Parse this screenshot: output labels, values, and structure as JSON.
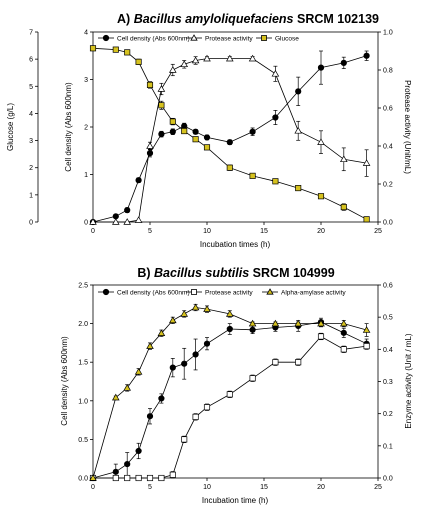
{
  "chart_data": [
    {
      "type": "line",
      "panel_letter": "A)",
      "title_italic": "Bacillus amyloliquefaciens",
      "title_rest": "SRCM 102139",
      "xlabel": "Incubation times (h)",
      "ylabel_left_outer": "Glucose (g/L)",
      "ylabel_left": "Cell density (Abs 600nm)",
      "ylabel_right": "Protease activity (Unit/mL)",
      "xlim": [
        0,
        25
      ],
      "xticks": [
        0,
        5,
        10,
        15,
        20,
        25
      ],
      "ylim_glucose": [
        0,
        7
      ],
      "yticks_glucose": [
        0,
        1,
        2,
        3,
        4,
        5,
        6,
        7
      ],
      "ylim_cell": [
        0,
        4
      ],
      "yticks_cell": [
        0,
        1,
        2,
        3,
        4
      ],
      "ylim_right": [
        0,
        1.0
      ],
      "yticks_right": [
        "0.0",
        "0.2",
        "0.4",
        "0.6",
        "0.8",
        "1.0"
      ],
      "legend_position": "top",
      "series": [
        {
          "name": "Cell density (Abs 600nm)",
          "axis": "cell",
          "marker": "circle-filled",
          "color": "#000000",
          "x": [
            0,
            2,
            3,
            4,
            5,
            6,
            7,
            8,
            9,
            10,
            12,
            14,
            16,
            18,
            20,
            22,
            24
          ],
          "y": [
            0.0,
            0.12,
            0.25,
            0.88,
            1.45,
            1.85,
            1.9,
            2.02,
            1.9,
            1.78,
            1.68,
            1.9,
            2.2,
            2.75,
            3.25,
            3.35,
            3.5
          ],
          "err": [
            0,
            0.03,
            0.05,
            0.05,
            0.08,
            0.06,
            0.06,
            0.06,
            0.05,
            0.05,
            0.05,
            0.08,
            0.15,
            0.3,
            0.35,
            0.12,
            0.1
          ]
        },
        {
          "name": "Protease activity",
          "axis": "right",
          "marker": "triangle-open",
          "color": "#000000",
          "x": [
            0,
            2,
            3,
            4,
            5,
            6,
            7,
            8,
            9,
            10,
            12,
            14,
            16,
            18,
            20,
            22,
            24
          ],
          "y": [
            0.0,
            0.0,
            0.0,
            0.01,
            0.4,
            0.7,
            0.8,
            0.83,
            0.85,
            0.86,
            0.86,
            0.86,
            0.78,
            0.48,
            0.42,
            0.33,
            0.31
          ],
          "err": [
            0,
            0,
            0,
            0,
            0.02,
            0.03,
            0.03,
            0.02,
            0.02,
            0.01,
            0.01,
            0.01,
            0.04,
            0.05,
            0.06,
            0.06,
            0.07
          ]
        },
        {
          "name": "Glucose",
          "axis": "glucose",
          "marker": "square",
          "color": "#d6c21f",
          "x": [
            0,
            2,
            3,
            4,
            5,
            6,
            7,
            8,
            9,
            10,
            12,
            14,
            16,
            18,
            20,
            22,
            24
          ],
          "y": [
            6.4,
            6.35,
            6.25,
            5.9,
            5.05,
            4.3,
            3.7,
            3.35,
            3.05,
            2.75,
            2.0,
            1.7,
            1.5,
            1.25,
            0.95,
            0.55,
            0.1
          ],
          "err": [
            0.05,
            0.05,
            0.05,
            0.1,
            0.12,
            0.15,
            0.12,
            0.08,
            0.08,
            0.08,
            0.1,
            0.05,
            0.05,
            0.08,
            0.08,
            0.12,
            0.05
          ]
        }
      ]
    },
    {
      "type": "line",
      "panel_letter": "B)",
      "title_italic": "Bacillus subtilis",
      "title_rest": "SRCM 104999",
      "xlabel": "Incubation time (h)",
      "ylabel_left": "Cell density (Abs 600nm)",
      "ylabel_right": "Enzyme activity (Unit / mL)",
      "xlim": [
        0,
        25
      ],
      "xticks": [
        0,
        5,
        10,
        15,
        20,
        25
      ],
      "ylim_cell": [
        0,
        2.5
      ],
      "yticks_cell": [
        "0.0",
        "0.5",
        "1.0",
        "1.5",
        "2.0",
        "2.5"
      ],
      "ylim_right": [
        0,
        0.6
      ],
      "yticks_right": [
        "0.0",
        "0.1",
        "0.2",
        "0.3",
        "0.4",
        "0.5",
        "0.6"
      ],
      "legend_position": "top",
      "series": [
        {
          "name": "Cell density (Abs 600nm)",
          "axis": "cell",
          "marker": "circle-filled",
          "color": "#000000",
          "x": [
            0,
            2,
            3,
            4,
            5,
            6,
            7,
            8,
            9,
            10,
            12,
            14,
            16,
            18,
            20,
            22,
            24
          ],
          "y": [
            0.0,
            0.08,
            0.18,
            0.35,
            0.8,
            1.03,
            1.43,
            1.48,
            1.6,
            1.74,
            1.93,
            1.92,
            1.95,
            1.97,
            2.02,
            1.88,
            1.74
          ],
          "err": [
            0,
            0.1,
            0.15,
            0.1,
            0.1,
            0.06,
            0.12,
            0.2,
            0.2,
            0.08,
            0.07,
            0.05,
            0.05,
            0.07,
            0.05,
            0.06,
            0.06
          ]
        },
        {
          "name": "Protease activity",
          "axis": "right",
          "marker": "square-open",
          "color": "#000000",
          "x": [
            0,
            2,
            3,
            4,
            5,
            6,
            7,
            8,
            9,
            10,
            12,
            14,
            16,
            18,
            20,
            22,
            24
          ],
          "y": [
            0.0,
            0.0,
            0.0,
            0.0,
            0.0,
            0.0,
            0.01,
            0.12,
            0.19,
            0.22,
            0.26,
            0.31,
            0.36,
            0.36,
            0.44,
            0.4,
            0.41
          ],
          "err": [
            0,
            0,
            0,
            0,
            0,
            0,
            0.01,
            0.01,
            0.01,
            0.01,
            0.01,
            0.01,
            0.01,
            0.01,
            0.01,
            0.01,
            0.01
          ]
        },
        {
          "name": "Alpha-amylase activity",
          "axis": "right",
          "marker": "triangle-filled",
          "color": "#d6c21f",
          "x": [
            0,
            2,
            3,
            4,
            5,
            6,
            7,
            8,
            9,
            10,
            12,
            14,
            16,
            18,
            20,
            22,
            24
          ],
          "y": [
            0.0,
            0.25,
            0.28,
            0.33,
            0.41,
            0.45,
            0.49,
            0.51,
            0.53,
            0.525,
            0.51,
            0.48,
            0.48,
            0.48,
            0.48,
            0.48,
            0.46
          ],
          "err": [
            0,
            0.005,
            0.01,
            0.01,
            0.01,
            0.01,
            0.01,
            0.01,
            0.01,
            0.01,
            0.01,
            0.005,
            0.005,
            0.005,
            0.01,
            0.01,
            0.02
          ]
        }
      ]
    }
  ]
}
